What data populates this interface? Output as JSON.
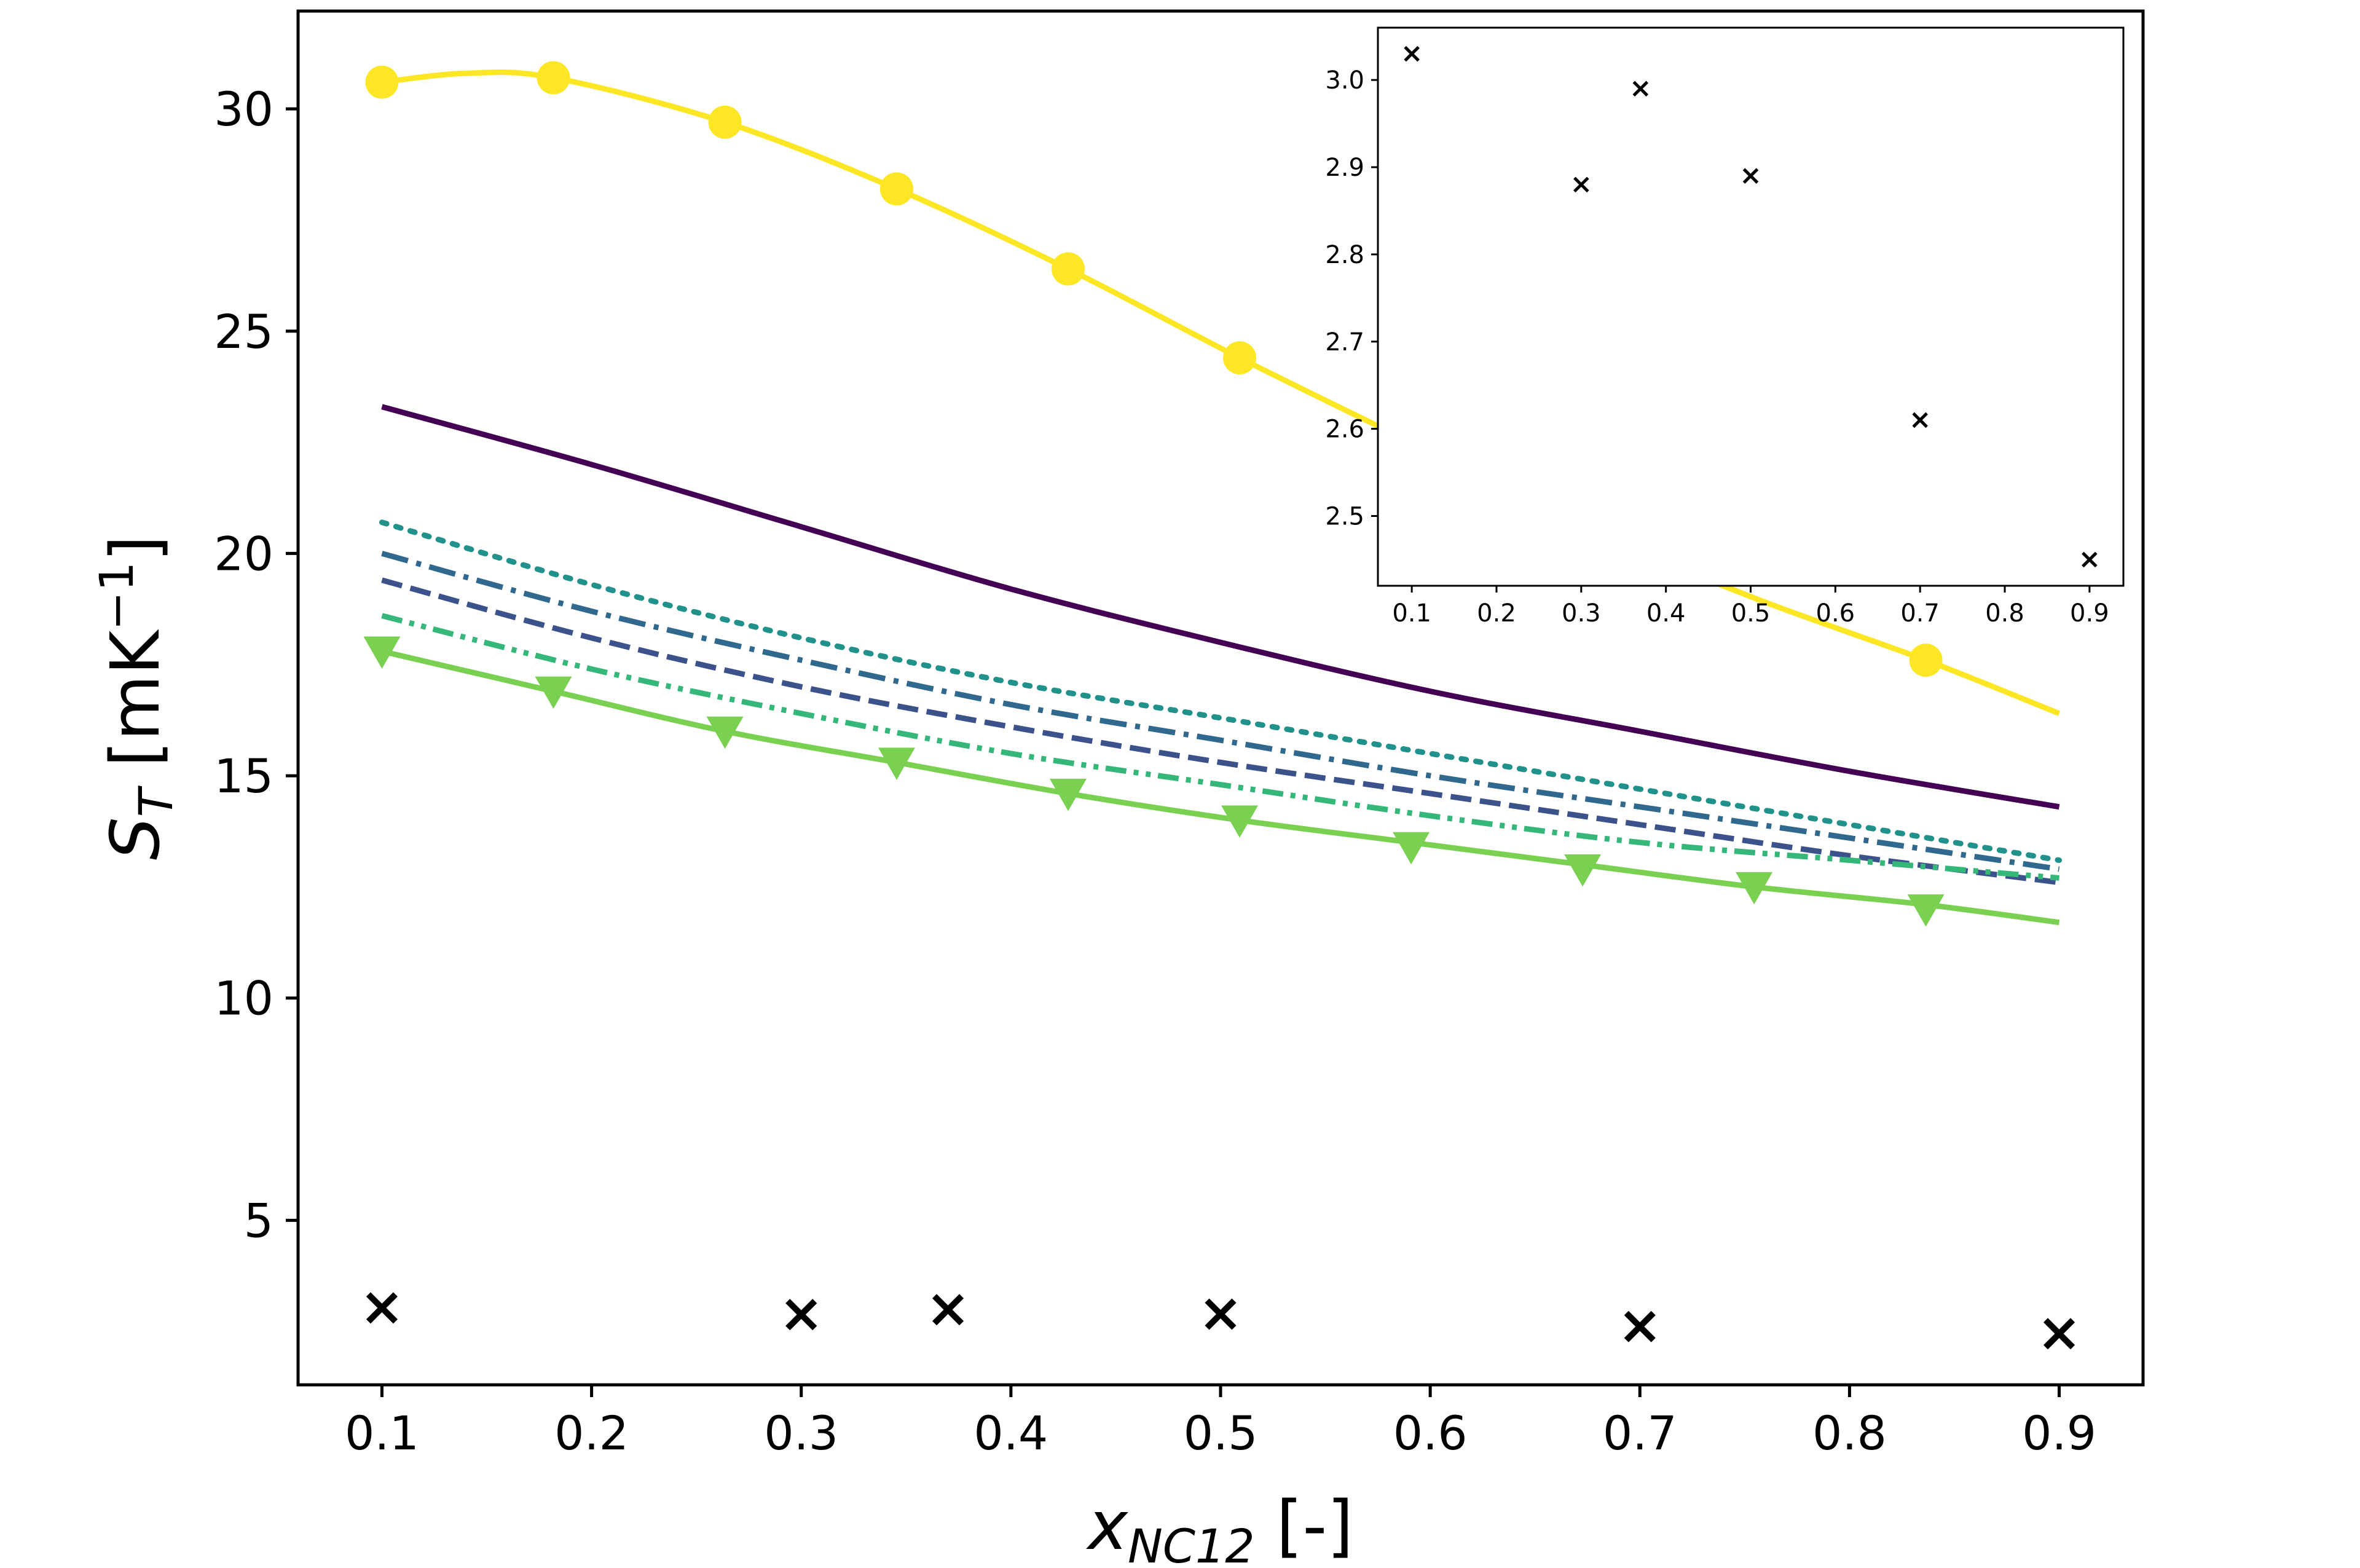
{
  "chart_data": {
    "main": {
      "type": "line",
      "xlabel": {
        "base": "x",
        "sub": "NC12",
        "suffix": " [-]"
      },
      "ylabel": {
        "base": "S",
        "sub": "T",
        "suffix": " [mK",
        "sup": "−1",
        "close": "]"
      },
      "xlim": [
        0.06,
        0.94
      ],
      "ylim": [
        1.3,
        32.2
      ],
      "xticks": [
        0.1,
        0.2,
        0.3,
        0.4,
        0.5,
        0.6,
        0.7,
        0.8,
        0.9
      ],
      "xtick_labels": [
        "0.1",
        "0.2",
        "0.3",
        "0.4",
        "0.5",
        "0.6",
        "0.7",
        "0.8",
        "0.9"
      ],
      "yticks": [
        5,
        10,
        15,
        20,
        25,
        30
      ],
      "ytick_labels": [
        "5",
        "10",
        "15",
        "20",
        "25",
        "30"
      ],
      "series": [
        {
          "color": "#440154",
          "dash": "solid",
          "x": [
            0.1,
            0.2,
            0.3,
            0.4,
            0.5,
            0.6,
            0.7,
            0.8,
            0.9
          ],
          "y": [
            23.3,
            22.0,
            20.6,
            19.2,
            18.0,
            16.9,
            16.0,
            15.1,
            14.3
          ]
        },
        {
          "color": "#3b528b",
          "dash": "dashed",
          "x": [
            0.1,
            0.2,
            0.3,
            0.4,
            0.5,
            0.6,
            0.7,
            0.8,
            0.9
          ],
          "y": [
            19.4,
            18.1,
            17.0,
            16.1,
            15.3,
            14.6,
            13.9,
            13.2,
            12.6
          ]
        },
        {
          "color": "#31688e",
          "dash": "dashdot",
          "x": [
            0.1,
            0.2,
            0.3,
            0.4,
            0.5,
            0.6,
            0.7,
            0.8,
            0.9
          ],
          "y": [
            20.0,
            18.7,
            17.6,
            16.6,
            15.8,
            15.0,
            14.3,
            13.6,
            12.9
          ]
        },
        {
          "color": "#21918c",
          "dash": "dotted",
          "x": [
            0.1,
            0.2,
            0.3,
            0.4,
            0.5,
            0.6,
            0.7,
            0.8,
            0.9
          ],
          "y": [
            20.7,
            19.3,
            18.1,
            17.1,
            16.3,
            15.5,
            14.7,
            13.9,
            13.1
          ]
        },
        {
          "color": "#35b779",
          "dash": "dashdotdot",
          "x": [
            0.1,
            0.2,
            0.3,
            0.4,
            0.5,
            0.6,
            0.7,
            0.8,
            0.9
          ],
          "y": [
            18.6,
            17.4,
            16.4,
            15.5,
            14.8,
            14.1,
            13.5,
            13.1,
            12.7
          ]
        },
        {
          "color": "#7ad151",
          "dash": "solid",
          "marker": "triangle-down",
          "x": [
            0.1,
            0.1818,
            0.2636,
            0.3455,
            0.4273,
            0.5091,
            0.5909,
            0.6727,
            0.7545,
            0.8364,
            0.9
          ],
          "y": [
            17.8,
            16.9,
            16.0,
            15.3,
            14.6,
            14.0,
            13.5,
            13.0,
            12.5,
            12.1,
            11.7
          ],
          "marker_x": [
            0.1,
            0.1818,
            0.2636,
            0.3455,
            0.4273,
            0.5091,
            0.5909,
            0.6727,
            0.7545,
            0.8364
          ],
          "marker_y": [
            17.8,
            16.9,
            16.0,
            15.3,
            14.6,
            14.0,
            13.4,
            12.9,
            12.5,
            12.0
          ]
        },
        {
          "color": "#fde725",
          "dash": "solid",
          "marker": "circle",
          "x": [
            0.1,
            0.14,
            0.1818,
            0.2636,
            0.3455,
            0.4273,
            0.5091,
            0.5909,
            0.6727,
            0.7545,
            0.8364,
            0.9
          ],
          "y": [
            30.6,
            30.8,
            30.7,
            29.7,
            28.2,
            26.4,
            24.4,
            22.5,
            20.6,
            19.0,
            17.6,
            16.4
          ],
          "marker_x": [
            0.1,
            0.1818,
            0.2636,
            0.3455,
            0.4273,
            0.5091,
            0.8364
          ],
          "marker_y": [
            30.6,
            30.7,
            29.7,
            28.2,
            26.4,
            24.4,
            17.6
          ]
        },
        {
          "color": "#000000",
          "marker": "x",
          "line": false,
          "marker_x": [
            0.1,
            0.3,
            0.37,
            0.5,
            0.7,
            0.9
          ],
          "marker_y": [
            3.03,
            2.88,
            2.99,
            2.89,
            2.61,
            2.45
          ]
        }
      ]
    },
    "inset": {
      "type": "scatter",
      "xlim": [
        0.06,
        0.94
      ],
      "ylim": [
        2.42,
        3.06
      ],
      "xticks": [
        0.1,
        0.2,
        0.3,
        0.4,
        0.5,
        0.6,
        0.7,
        0.8,
        0.9
      ],
      "xtick_labels": [
        "0.1",
        "0.2",
        "0.3",
        "0.4",
        "0.5",
        "0.6",
        "0.7",
        "0.8",
        "0.9"
      ],
      "yticks": [
        2.5,
        2.6,
        2.7,
        2.8,
        2.9,
        3.0
      ],
      "ytick_labels": [
        "2.5",
        "2.6",
        "2.7",
        "2.8",
        "2.9",
        "3.0"
      ],
      "x": [
        0.1,
        0.3,
        0.37,
        0.5,
        0.7,
        0.9
      ],
      "y": [
        3.03,
        2.88,
        2.99,
        2.89,
        2.61,
        2.45
      ],
      "color": "#000000",
      "marker": "x"
    }
  }
}
